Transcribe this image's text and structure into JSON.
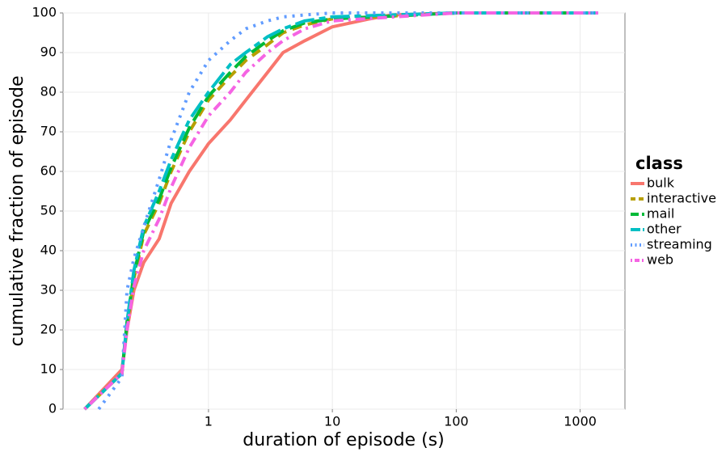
{
  "chart_data": {
    "type": "line",
    "x_label": "duration of episode (s)",
    "y_label": "cumulative fraction of episode",
    "legend_title": "class",
    "xscale": "log",
    "xlim": [
      0.067,
      2300
    ],
    "xticks": [
      1,
      10,
      100,
      1000
    ],
    "ylim": [
      0,
      100
    ],
    "yticks": [
      0,
      10,
      20,
      30,
      40,
      50,
      60,
      70,
      80,
      90,
      100
    ],
    "grid": true,
    "legend": "right",
    "series": [
      {
        "name": "bulk",
        "color": "#f8766d",
        "dash": "solid",
        "x": [
          0.1,
          0.2,
          0.22,
          0.25,
          0.3,
          0.4,
          0.5,
          0.7,
          1,
          1.5,
          2,
          3,
          4,
          6,
          10,
          20,
          30,
          100,
          1400
        ],
        "values": [
          0,
          10,
          20,
          30,
          37,
          43,
          52,
          60,
          67,
          73,
          78,
          85,
          90,
          93,
          96.5,
          98.5,
          99.5,
          100,
          100
        ]
      },
      {
        "name": "interactive",
        "color": "#b79f00",
        "dash": "dashed",
        "x": [
          0.1,
          0.2,
          0.22,
          0.25,
          0.3,
          0.4,
          0.5,
          0.7,
          1,
          1.5,
          2,
          3,
          4,
          6,
          10,
          100,
          1400
        ],
        "values": [
          0,
          9,
          21,
          33,
          44,
          52,
          60,
          70,
          78,
          84,
          88,
          92,
          95,
          97,
          98.5,
          100,
          100
        ]
      },
      {
        "name": "mail",
        "color": "#00ba38",
        "dash": "longdash",
        "x": [
          0.1,
          0.2,
          0.22,
          0.25,
          0.3,
          0.4,
          0.5,
          0.7,
          1,
          1.5,
          2,
          3,
          4,
          6,
          10,
          100,
          1400
        ],
        "values": [
          0,
          9,
          22,
          34,
          45,
          53,
          61,
          71,
          79,
          85,
          89,
          93,
          95.5,
          97.5,
          98.5,
          100,
          100
        ]
      },
      {
        "name": "other",
        "color": "#00bfc4",
        "dash": "twodash",
        "x": [
          0.1,
          0.2,
          0.22,
          0.25,
          0.3,
          0.4,
          0.5,
          0.7,
          1,
          1.5,
          2,
          3,
          4,
          6,
          10,
          30,
          100,
          1400
        ],
        "values": [
          0,
          9,
          22,
          35,
          46,
          55,
          63,
          73,
          80,
          87,
          90,
          94,
          96,
          98,
          99,
          99.5,
          100,
          100
        ]
      },
      {
        "name": "streaming",
        "color": "#619cff",
        "dash": "dotted",
        "x": [
          0.13,
          0.2,
          0.22,
          0.25,
          0.3,
          0.4,
          0.5,
          0.7,
          1,
          1.5,
          2,
          3,
          4,
          6,
          10,
          100,
          1400
        ],
        "values": [
          0,
          8,
          30,
          38,
          46,
          58,
          68,
          80,
          88,
          93,
          96,
          98,
          99,
          99.5,
          100,
          100,
          100
        ]
      },
      {
        "name": "web",
        "color": "#f564e3",
        "dash": "dotdash",
        "x": [
          0.1,
          0.2,
          0.22,
          0.25,
          0.3,
          0.4,
          0.5,
          0.7,
          1,
          1.5,
          2,
          3,
          4,
          6,
          10,
          100,
          1400
        ],
        "values": [
          0,
          9,
          20,
          31,
          40,
          48,
          56,
          66,
          74,
          80,
          85,
          90,
          93,
          96,
          98,
          100,
          100
        ]
      }
    ]
  }
}
